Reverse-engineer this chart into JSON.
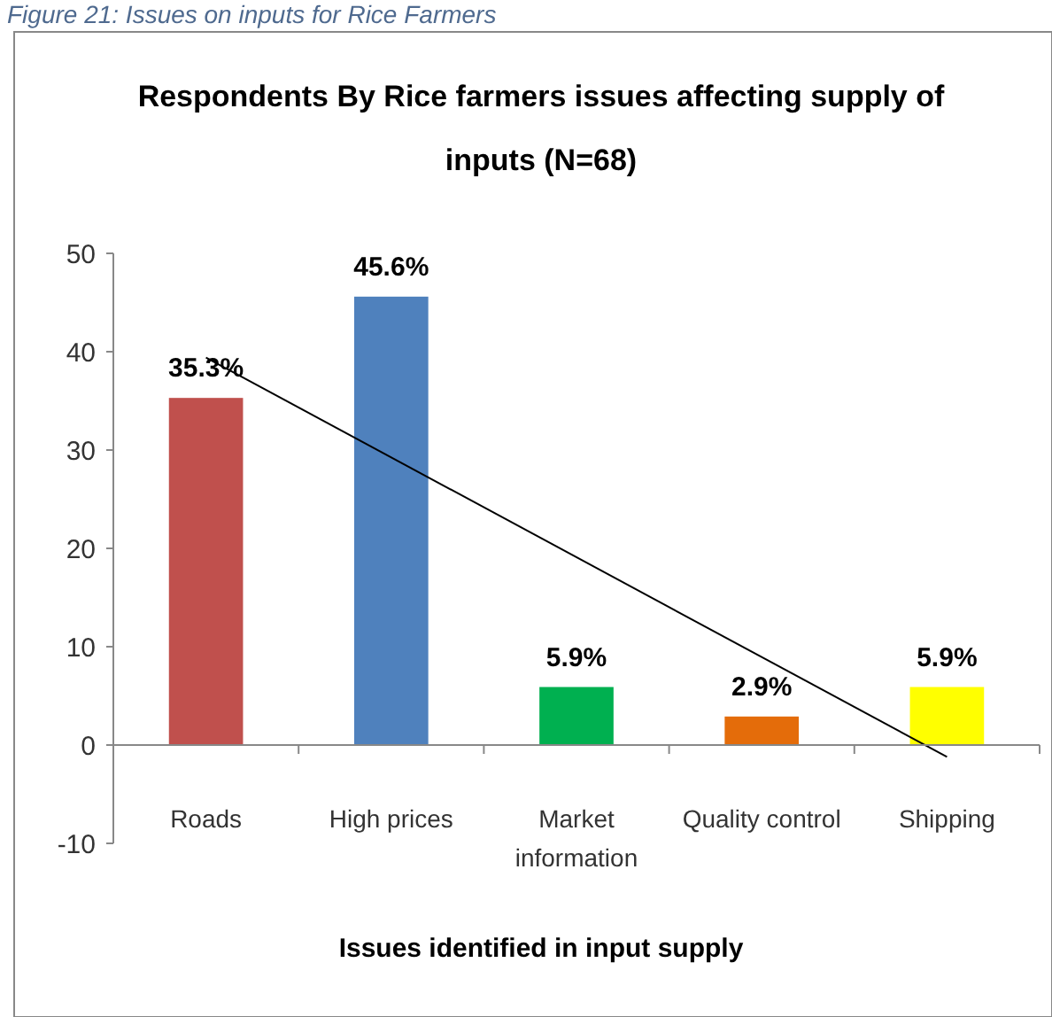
{
  "chart_data": {
    "type": "bar",
    "title": "Respondents By Rice farmers issues affecting supply of inputs (N=68)",
    "xlabel": "Issues identified in input supply",
    "annotations": [
      "Figure 21: Issues on inputs for Rice Farmers"
    ],
    "categories": [
      "Roads",
      "High prices",
      "Market information",
      "Quality control",
      "Shipping"
    ],
    "values": [
      35.3,
      45.6,
      5.9,
      2.9,
      5.9
    ],
    "colors": [
      "#c0504d",
      "#4f81bd",
      "#00b050",
      "#e46c0a",
      "#ffff00"
    ],
    "value_labels": [
      "35.3%",
      "45.6%",
      "5.9%",
      "2.9%",
      "5.9%"
    ],
    "series": [
      {
        "type": "line",
        "x": [
          "Roads",
          "Shipping"
        ],
        "values": [
          39.4,
          -1.2
        ],
        "color": "#000000"
      }
    ],
    "ylim": [
      -10,
      50
    ],
    "yticks": [
      -10,
      0,
      10,
      20,
      30,
      40,
      50
    ],
    "grid": false
  }
}
